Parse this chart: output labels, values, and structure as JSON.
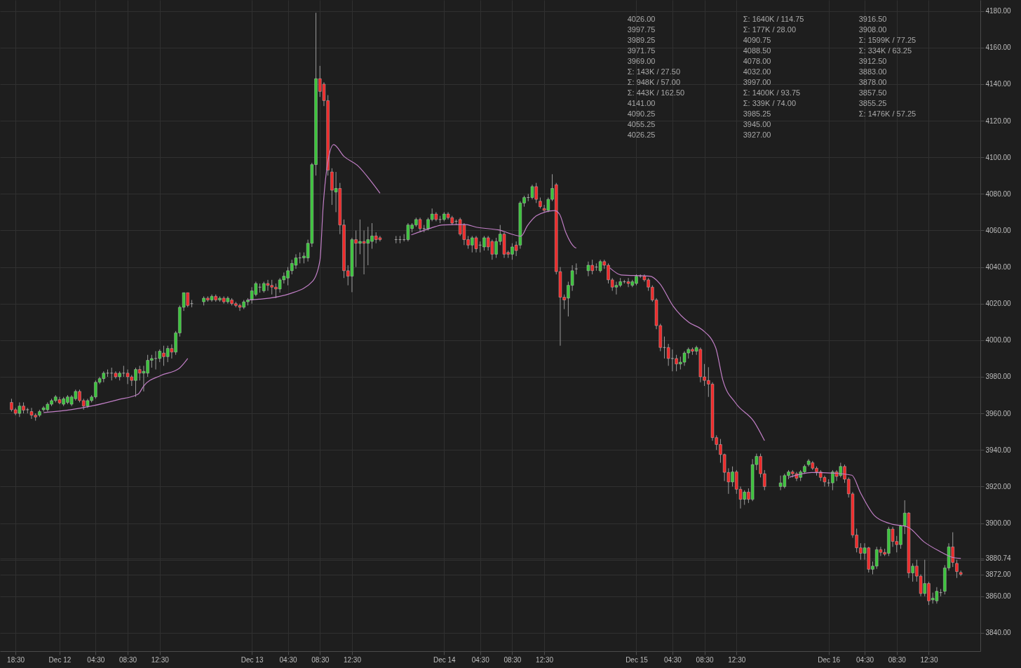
{
  "chart_data": {
    "type": "candlestick",
    "x": [
      "--12-11T18:00",
      "--12-11T18:30",
      "--12-11T19:00",
      "--12-11T19:30",
      "--12-11T20:00",
      "--12-11T20:30",
      "--12-11T21:00",
      "--12-11T21:30",
      "--12-11T22:00",
      "--12-11T22:30",
      "--12-11T23:00",
      "--12-11T23:30",
      "--12-12T00:00",
      "--12-12T00:30",
      "--12-12T01:00",
      "--12-12T01:30",
      "--12-12T02:00",
      "--12-12T02:30",
      "--12-12T03:00",
      "--12-12T03:30",
      "--12-12T04:00",
      "--12-12T04:30",
      "--12-12T05:00",
      "--12-12T05:30",
      "--12-12T06:00",
      "--12-12T06:30",
      "--12-12T07:00",
      "--12-12T07:30",
      "--12-12T08:00",
      "--12-12T08:30",
      "--12-12T09:00",
      "--12-12T09:30",
      "--12-12T10:00",
      "--12-12T10:30",
      "--12-12T11:00",
      "--12-12T11:30",
      "--12-12T12:00",
      "--12-12T12:30",
      "--12-12T13:00",
      "--12-12T13:30",
      "--12-12T14:00",
      "--12-12T14:30",
      "--12-12T15:00",
      "--12-12T15:30",
      "--12-12T16:00",
      "--12-12T16:30",
      "--12-12T18:00",
      "--12-12T18:30",
      "--12-12T19:00",
      "--12-12T19:30",
      "--12-12T20:00",
      "--12-12T20:30",
      "--12-12T21:00",
      "--12-12T21:30",
      "--12-12T22:00",
      "--12-12T22:30",
      "--12-12T23:00",
      "--12-12T23:30",
      "--12-13T00:00",
      "--12-13T00:30",
      "--12-13T01:00",
      "--12-13T01:30",
      "--12-13T02:00",
      "--12-13T02:30",
      "--12-13T03:00",
      "--12-13T03:30",
      "--12-13T04:00",
      "--12-13T04:30",
      "--12-13T05:00",
      "--12-13T05:30",
      "--12-13T06:00",
      "--12-13T06:30",
      "--12-13T07:00",
      "--12-13T07:30",
      "--12-13T08:00",
      "--12-13T08:30",
      "--12-13T09:00",
      "--12-13T09:30",
      "--12-13T10:00",
      "--12-13T10:30",
      "--12-13T11:00",
      "--12-13T11:30",
      "--12-13T12:00",
      "--12-13T12:30",
      "--12-13T13:00",
      "--12-13T13:30",
      "--12-13T14:00",
      "--12-13T14:30",
      "--12-13T15:00",
      "--12-13T15:30",
      "--12-13T16:00",
      "--12-13T18:00",
      "--12-13T18:30",
      "--12-13T19:00",
      "--12-13T19:30",
      "--12-13T20:00",
      "--12-13T20:30",
      "--12-13T21:00",
      "--12-13T21:30",
      "--12-13T22:00",
      "--12-13T22:30",
      "--12-13T23:00",
      "--12-13T23:30",
      "--12-14T00:00",
      "--12-14T00:30",
      "--12-14T01:00",
      "--12-14T01:30",
      "--12-14T02:00",
      "--12-14T02:30",
      "--12-14T03:00",
      "--12-14T03:30",
      "--12-14T04:00",
      "--12-14T04:30",
      "--12-14T05:00",
      "--12-14T05:30",
      "--12-14T06:00",
      "--12-14T06:30",
      "--12-14T07:00",
      "--12-14T07:30",
      "--12-14T08:00",
      "--12-14T08:30",
      "--12-14T09:00",
      "--12-14T09:30",
      "--12-14T10:00",
      "--12-14T10:30",
      "--12-14T11:00",
      "--12-14T11:30",
      "--12-14T12:00",
      "--12-14T12:30",
      "--12-14T13:00",
      "--12-14T13:30",
      "--12-14T14:00",
      "--12-14T14:30",
      "--12-14T15:00",
      "--12-14T15:30",
      "--12-14T16:00",
      "--12-14T16:30",
      "--12-14T18:00",
      "--12-14T18:30",
      "--12-14T19:00",
      "--12-14T19:30",
      "--12-14T20:00",
      "--12-14T20:30",
      "--12-14T21:00",
      "--12-14T21:30",
      "--12-14T22:00",
      "--12-14T22:30",
      "--12-14T23:00",
      "--12-14T23:30",
      "--12-15T00:00",
      "--12-15T00:30",
      "--12-15T01:00",
      "--12-15T01:30",
      "--12-15T02:00",
      "--12-15T02:30",
      "--12-15T03:00",
      "--12-15T03:30",
      "--12-15T04:00",
      "--12-15T04:30",
      "--12-15T05:00",
      "--12-15T05:30",
      "--12-15T06:00",
      "--12-15T06:30",
      "--12-15T07:00",
      "--12-15T07:30",
      "--12-15T08:00",
      "--12-15T08:30",
      "--12-15T09:00",
      "--12-15T09:30",
      "--12-15T10:00",
      "--12-15T10:30",
      "--12-15T11:00",
      "--12-15T11:30",
      "--12-15T12:00",
      "--12-15T12:30",
      "--12-15T13:00",
      "--12-15T13:30",
      "--12-15T14:00",
      "--12-15T14:30",
      "--12-15T15:00",
      "--12-15T15:30",
      "--12-15T16:00",
      "--12-15T18:00",
      "--12-15T18:30",
      "--12-15T19:00",
      "--12-15T19:30",
      "--12-15T20:00",
      "--12-15T20:30",
      "--12-15T21:00",
      "--12-15T21:30",
      "--12-15T22:00",
      "--12-15T22:30",
      "--12-15T23:00",
      "--12-15T23:30",
      "--12-16T00:00",
      "--12-16T00:30",
      "--12-16T01:00",
      "--12-16T01:30",
      "--12-16T02:00",
      "--12-16T02:30",
      "--12-16T03:00",
      "--12-16T03:30",
      "--12-16T04:00",
      "--12-16T04:30",
      "--12-16T05:00",
      "--12-16T05:30",
      "--12-16T06:00",
      "--12-16T06:30",
      "--12-16T07:00",
      "--12-16T07:30",
      "--12-16T08:00",
      "--12-16T08:30",
      "--12-16T09:00",
      "--12-16T09:30",
      "--12-16T10:00",
      "--12-16T10:30",
      "--12-16T11:00",
      "--12-16T11:30",
      "--12-16T12:00",
      "--12-16T12:30",
      "--12-16T13:00",
      "--12-16T13:30",
      "--12-16T14:00",
      "--12-16T14:30",
      "--12-16T15:00",
      "--12-16T15:30",
      "--12-16T16:00",
      "--12-16T16:30"
    ],
    "ohlc": [
      [
        3966,
        3968,
        3961,
        3962
      ],
      [
        3962,
        3963,
        3959,
        3960
      ],
      [
        3960,
        3966,
        3958,
        3964
      ],
      [
        3964,
        3966,
        3960,
        3961.75
      ],
      [
        3962,
        3963,
        3960,
        3962
      ],
      [
        3961,
        3963,
        3957,
        3959
      ],
      [
        3959,
        3960,
        3956,
        3958
      ],
      [
        3959,
        3962,
        3958,
        3961
      ],
      [
        3962,
        3964,
        3961,
        3963
      ],
      [
        3962,
        3966,
        3961,
        3965
      ],
      [
        3965,
        3968,
        3964,
        3967
      ],
      [
        3967,
        3970,
        3966,
        3969
      ],
      [
        3967.5,
        3969,
        3965,
        3965.75
      ],
      [
        3965,
        3969,
        3964,
        3968
      ],
      [
        3966,
        3970,
        3965,
        3969
      ],
      [
        3965,
        3970,
        3964,
        3969
      ],
      [
        3968,
        3973,
        3967,
        3972
      ],
      [
        3972,
        3973,
        3966,
        3967
      ],
      [
        3967,
        3968,
        3962,
        3964
      ],
      [
        3964,
        3968,
        3963,
        3967
      ],
      [
        3967,
        3970,
        3966,
        3969
      ],
      [
        3969,
        3978,
        3968,
        3977
      ],
      [
        3977,
        3980,
        3976,
        3979
      ],
      [
        3979,
        3983,
        3977,
        3982
      ],
      [
        3982,
        3984,
        3980,
        3982
      ],
      [
        3982,
        3985,
        3978,
        3982
      ],
      [
        3982,
        3983,
        3979,
        3980
      ],
      [
        3980,
        3983,
        3978,
        3982
      ],
      [
        3982,
        3986,
        3980,
        3982
      ],
      [
        3982,
        3984,
        3976,
        3980
      ],
      [
        3980,
        3981,
        3975,
        3978
      ],
      [
        3978,
        3985,
        3969,
        3984
      ],
      [
        3984,
        3986,
        3978,
        3982
      ],
      [
        3982,
        3986,
        3972,
        3983
      ],
      [
        3982,
        3992,
        3980,
        3989
      ],
      [
        3989,
        3992,
        3985,
        3990
      ],
      [
        3990,
        3994,
        3984,
        3990
      ],
      [
        3990,
        3995,
        3988,
        3994
      ],
      [
        3993,
        3997,
        3986,
        3991
      ],
      [
        3991,
        3997,
        3988,
        3995.5
      ],
      [
        3995.5,
        3997.75,
        3990,
        3993.5
      ],
      [
        3993.5,
        4005,
        3992,
        4004
      ],
      [
        4004,
        4019,
        4002,
        4018
      ],
      [
        4018,
        4026,
        4016,
        4026
      ],
      [
        4026,
        4026,
        4018,
        4019
      ],
      [
        4020,
        4022,
        4018,
        4020
      ],
      [
        4021,
        4024,
        4019,
        4023
      ],
      [
        4023,
        4024,
        4021,
        4022
      ],
      [
        4022,
        4025,
        4021,
        4024
      ],
      [
        4024,
        4025,
        4021,
        4022
      ],
      [
        4022,
        4024,
        4021,
        4023
      ],
      [
        4023,
        4024,
        4020,
        4021
      ],
      [
        4021,
        4024,
        4020,
        4023
      ],
      [
        4022,
        4023,
        4019,
        4020
      ],
      [
        4020,
        4021,
        4018,
        4019
      ],
      [
        4019,
        4020,
        4016,
        4018
      ],
      [
        4018,
        4022,
        4017,
        4021
      ],
      [
        4021,
        4023,
        4019,
        4022
      ],
      [
        4022,
        4029,
        4020,
        4027
      ],
      [
        4025,
        4032,
        4024,
        4031
      ],
      [
        4029,
        4031,
        4026,
        4029
      ],
      [
        4027,
        4032,
        4026,
        4031
      ],
      [
        4031,
        4033,
        4027,
        4030
      ],
      [
        4030,
        4033,
        4025,
        4029
      ],
      [
        4029,
        4031,
        4023,
        4028
      ],
      [
        4028,
        4034,
        4026,
        4033
      ],
      [
        4033,
        4037,
        4031,
        4035
      ],
      [
        4034,
        4040,
        4030,
        4038
      ],
      [
        4038,
        4044,
        4036,
        4042
      ],
      [
        4041,
        4047,
        4039,
        4045
      ],
      [
        4045,
        4048,
        4042,
        4045
      ],
      [
        4045,
        4048,
        4042,
        4046
      ],
      [
        4045,
        4055,
        4043,
        4053
      ],
      [
        4053,
        4097,
        4051,
        4096
      ],
      [
        4096,
        4179,
        4090,
        4143
      ],
      [
        4143,
        4150,
        4133,
        4136
      ],
      [
        4140,
        4141,
        4128,
        4131
      ],
      [
        4131,
        4134,
        4090,
        4093
      ],
      [
        4092,
        4094,
        4074,
        4082
      ],
      [
        4081,
        4092,
        4070,
        4083
      ],
      [
        4083,
        4086,
        4058,
        4063
      ],
      [
        4063,
        4066,
        4034,
        4038
      ],
      [
        4038,
        4041,
        4030,
        4035
      ],
      [
        4035,
        4056,
        4026.25,
        4055
      ],
      [
        4055,
        4060,
        4040,
        4053
      ],
      [
        4053,
        4066,
        4047,
        4054
      ],
      [
        4054,
        4060,
        4036,
        4053
      ],
      [
        4053,
        4062,
        4041,
        4055
      ],
      [
        4054,
        4064,
        4050,
        4057
      ],
      [
        4057,
        4059,
        4053,
        4055
      ],
      [
        4056,
        4057,
        4054,
        4055
      ],
      [
        4055,
        4057,
        4053,
        4055
      ],
      [
        4055,
        4057,
        4053,
        4055
      ],
      [
        4055,
        4058,
        4054,
        4055
      ],
      [
        4055,
        4064,
        4054,
        4063
      ],
      [
        4061,
        4064,
        4059,
        4063
      ],
      [
        4063,
        4067,
        4062,
        4066
      ],
      [
        4066,
        4067,
        4059,
        4061
      ],
      [
        4061,
        4063,
        4059,
        4061
      ],
      [
        4061,
        4067,
        4060,
        4066
      ],
      [
        4066,
        4072,
        4065,
        4069
      ],
      [
        4069,
        4070,
        4065,
        4066
      ],
      [
        4066,
        4068,
        4064,
        4066
      ],
      [
        4066,
        4070,
        4065,
        4069
      ],
      [
        4069,
        4070,
        4066,
        4067
      ],
      [
        4067,
        4068,
        4063,
        4064
      ],
      [
        4065,
        4066,
        4063,
        4065
      ],
      [
        4066,
        4067,
        4057,
        4058
      ],
      [
        4063,
        4064,
        4052,
        4055
      ],
      [
        4055,
        4057,
        4050,
        4052
      ],
      [
        4052,
        4057,
        4048,
        4056
      ],
      [
        4056,
        4057,
        4048,
        4050
      ],
      [
        4052,
        4054,
        4048,
        4052
      ],
      [
        4051,
        4057,
        4049,
        4056
      ],
      [
        4056,
        4057,
        4049,
        4051
      ],
      [
        4054,
        4055,
        4044,
        4047
      ],
      [
        4047,
        4056,
        4045,
        4054
      ],
      [
        4054,
        4063,
        4052,
        4058
      ],
      [
        4058,
        4059,
        4045,
        4047
      ],
      [
        4048,
        4049,
        4045,
        4047
      ],
      [
        4047,
        4053,
        4044,
        4051
      ],
      [
        4052,
        4054,
        4046,
        4049
      ],
      [
        4052,
        4076,
        4050,
        4075
      ],
      [
        4075,
        4079,
        4073,
        4078
      ],
      [
        4078,
        4080,
        4076,
        4078
      ],
      [
        4078,
        4085,
        4077,
        4084
      ],
      [
        4084,
        4086,
        4075,
        4077
      ],
      [
        4076,
        4078,
        4072,
        4073
      ],
      [
        4072,
        4074,
        4070,
        4071
      ],
      [
        4071,
        4078,
        4070,
        4077
      ],
      [
        4077,
        4090.75,
        4076,
        4083
      ],
      [
        4085,
        4086,
        4036,
        4037.5
      ],
      [
        4037.5,
        4040,
        3997,
        4023.5
      ],
      [
        4023.5,
        4025,
        4017,
        4022
      ],
      [
        4023,
        4032,
        4013,
        4030
      ],
      [
        4030,
        4041,
        4027,
        4038
      ],
      [
        4039,
        4042,
        4036,
        4039
      ],
      [
        4038,
        4043,
        4035,
        4041
      ],
      [
        4041,
        4044,
        4036,
        4038
      ],
      [
        4040,
        4042,
        4038,
        4040
      ],
      [
        4038,
        4044,
        4037,
        4043
      ],
      [
        4043,
        4044,
        4039,
        4041
      ],
      [
        4041,
        4042,
        4031,
        4033
      ],
      [
        4033,
        4034,
        4027,
        4029
      ],
      [
        4029,
        4032,
        4025,
        4030
      ],
      [
        4030,
        4034,
        4029,
        4032
      ],
      [
        4032,
        4033,
        4031,
        4032
      ],
      [
        4032,
        4034,
        4029,
        4031
      ],
      [
        4030,
        4033,
        4029,
        4032
      ],
      [
        4031,
        4036,
        4030,
        4035
      ],
      [
        4035,
        4036,
        4034,
        4035
      ],
      [
        4035,
        4036,
        4032,
        4033
      ],
      [
        4033,
        4034,
        4027,
        4029
      ],
      [
        4029,
        4030,
        4021,
        4022
      ],
      [
        4022,
        4023,
        4006,
        4008
      ],
      [
        4008,
        4009,
        3994,
        3996
      ],
      [
        3996,
        4002,
        3990,
        3996
      ],
      [
        3996,
        3998,
        3986,
        3990
      ],
      [
        3990,
        3995,
        3983,
        3990
      ],
      [
        3990,
        3992,
        3983,
        3987
      ],
      [
        3987,
        3991,
        3984,
        3988
      ],
      [
        3988,
        3994,
        3986,
        3993
      ],
      [
        3993,
        3996,
        3990,
        3995
      ],
      [
        3995,
        3996,
        3992,
        3994
      ],
      [
        3994,
        3997,
        3992,
        3996
      ],
      [
        3995,
        3996,
        3977,
        3980
      ],
      [
        3980,
        3987,
        3975,
        3978
      ],
      [
        3978,
        3985.25,
        3969,
        3976
      ],
      [
        3976,
        3977,
        3945,
        3946.75
      ],
      [
        3946.75,
        3948,
        3940,
        3943
      ],
      [
        3943,
        3946,
        3933,
        3937.5
      ],
      [
        3937.5,
        3938,
        3923,
        3927.75
      ],
      [
        3927.75,
        3930,
        3916,
        3922.5
      ],
      [
        3922.5,
        3931,
        3920,
        3928
      ],
      [
        3928,
        3929,
        3916,
        3918.5
      ],
      [
        3918.5,
        3920,
        3908,
        3913
      ],
      [
        3913,
        3918,
        3910,
        3917
      ],
      [
        3917,
        3919,
        3911,
        3913
      ],
      [
        3913,
        3935,
        3912,
        3932
      ],
      [
        3932,
        3938,
        3929,
        3936.5
      ],
      [
        3936.5,
        3938,
        3925,
        3927
      ],
      [
        3927,
        3929,
        3918,
        3920
      ],
      [
        3920,
        3926,
        3918,
        3922
      ],
      [
        3920,
        3927,
        3919,
        3926
      ],
      [
        3926,
        3929,
        3924,
        3928
      ],
      [
        3928,
        3929,
        3925,
        3927
      ],
      [
        3927,
        3928,
        3923,
        3924.5
      ],
      [
        3925,
        3929,
        3923,
        3928
      ],
      [
        3928,
        3932,
        3927,
        3931
      ],
      [
        3932,
        3935,
        3931,
        3934
      ],
      [
        3933,
        3934,
        3929,
        3930
      ],
      [
        3930,
        3931,
        3926,
        3928
      ],
      [
        3928,
        3929,
        3923,
        3925
      ],
      [
        3925,
        3926,
        3920,
        3922.5
      ],
      [
        3922,
        3924,
        3920,
        3922
      ],
      [
        3922,
        3929,
        3918,
        3928
      ],
      [
        3928,
        3929,
        3923,
        3925.5
      ],
      [
        3926,
        3933,
        3925,
        3931
      ],
      [
        3931,
        3932,
        3922,
        3924
      ],
      [
        3924,
        3925,
        3914,
        3916
      ],
      [
        3916,
        3917,
        3892,
        3893.5
      ],
      [
        3893.5,
        3897,
        3884,
        3886.5
      ],
      [
        3886.5,
        3889,
        3880,
        3883.5
      ],
      [
        3883.5,
        3889,
        3880,
        3886.5
      ],
      [
        3886.5,
        3887,
        3873,
        3874.75
      ],
      [
        3874.75,
        3879,
        3872,
        3876.5
      ],
      [
        3876.5,
        3887,
        3875,
        3885.5
      ],
      [
        3885.5,
        3887,
        3882,
        3884
      ],
      [
        3884,
        3886,
        3882,
        3883
      ],
      [
        3883.5,
        3898,
        3882,
        3896.75
      ],
      [
        3896.75,
        3898,
        3887,
        3890
      ],
      [
        3890,
        3893,
        3884,
        3888.25
      ],
      [
        3888.25,
        3899,
        3886,
        3898.5
      ],
      [
        3898.5,
        3912.5,
        3894,
        3905.5
      ],
      [
        3905.5,
        3906,
        3870,
        3872.75
      ],
      [
        3872.75,
        3878,
        3868,
        3876.5
      ],
      [
        3876.5,
        3880,
        3868,
        3871
      ],
      [
        3871,
        3872,
        3860,
        3861.5
      ],
      [
        3861.5,
        3880,
        3860,
        3867
      ],
      [
        3867,
        3868,
        3855.25,
        3857.5
      ],
      [
        3858,
        3862,
        3856,
        3859
      ],
      [
        3857.5,
        3865,
        3856,
        3862.75
      ],
      [
        3862,
        3864,
        3860,
        3862
      ],
      [
        3862.75,
        3877,
        3861,
        3875.5
      ],
      [
        3875.5,
        3889,
        3874,
        3887
      ],
      [
        3887,
        3895,
        3876,
        3878.5
      ],
      [
        3878,
        3880,
        3870,
        3873.5
      ],
      [
        3873,
        3874,
        3871,
        3872
      ]
    ],
    "series": [
      {
        "type": "line",
        "color": "#c17fc6",
        "x": [
          "--12-11T22:00",
          "--12-12T01:24",
          "--12-12T04:12",
          "--12-12T07:18",
          "--12-12T09:48",
          "--12-12T10:30",
          "--12-12T12:36",
          "--12-12T14:54",
          "--12-12T16:00"
        ],
        "values": [
          3960.5,
          3962,
          3964.2,
          3967.5,
          3970.5,
          3975,
          3980.7,
          3984.5,
          3990
        ]
      },
      {
        "type": "line",
        "color": "#c17fc6",
        "x": [
          "--12-12T23:30",
          "--12-13T00:54",
          "--12-13T04:48",
          "--12-13T07:36",
          "--12-13T08:30",
          "--12-13T08:54",
          "--12-13T09:18",
          "--12-13T10:12",
          "--12-13T11:30",
          "--12-13T13:12",
          "--12-13T14:54",
          "--12-13T16:00"
        ],
        "values": [
          4022,
          4022.4,
          4025.5,
          4032.3,
          4043.6,
          4073,
          4091.7,
          4106.9,
          4100.5,
          4095.5,
          4086.8,
          4080.4
        ]
      },
      {
        "type": "line",
        "color": "#c17fc6",
        "x": [
          "--12-13T19:54",
          "--12-13T22:24",
          "--12-13T23:48",
          "--12-14T02:36",
          "--12-14T04:00",
          "--12-14T06:48",
          "--12-14T09:36",
          "--12-14T10:24",
          "--12-14T11:36",
          "--12-14T13:48",
          "--12-14T14:24",
          "--12-14T15:12",
          "--12-14T16:18",
          "--12-14T16:30"
        ],
        "values": [
          4057.6,
          4061.4,
          4063,
          4063.3,
          4061.8,
          4060.3,
          4056.9,
          4062.6,
          4068.2,
          4070.9,
          4069,
          4058.8,
          4050.8,
          4050.4
        ]
      },
      {
        "type": "line",
        "color": "#c17fc6",
        "x": [
          "--12-14T20:42",
          "--12-14T22:06",
          "--12-15T01:42",
          "--12-15T02:54",
          "--12-15T04:36",
          "--12-15T06:36",
          "--12-15T08:12",
          "--12-15T09:54",
          "--12-15T10:48",
          "--12-15T12:24",
          "--12-15T14:42",
          "--12-15T16:00"
        ],
        "values": [
          4039.5,
          4035.7,
          4035,
          4031.1,
          4018.6,
          4009.6,
          4005.8,
          3995.9,
          3978.1,
          3965.6,
          3955.4,
          3945.1
        ]
      },
      {
        "type": "line",
        "color": "#c17fc6",
        "x": [
          "--12-15T19:06",
          "--12-15T21:54",
          "--12-16T00:42",
          "--12-16T02:54",
          "--12-16T04:00",
          "--12-16T05:42",
          "--12-16T07:42",
          "--12-16T09:54",
          "--12-16T11:54",
          "--12-16T13:54",
          "--12-16T15:18",
          "--12-16T16:30"
        ],
        "values": [
          3925.1,
          3927.7,
          3927.3,
          3926.2,
          3916.4,
          3904.2,
          3899.7,
          3897.8,
          3889.8,
          3884.5,
          3881.5,
          3880.7
        ]
      }
    ],
    "xlim": [
      "--12-11T17:00",
      "--12-16T18:30"
    ],
    "xticks": [
      {
        "value": "--12-11T18:30",
        "label": "18:30"
      },
      {
        "value": "--12-12T00:00",
        "label": "Dec 12"
      },
      {
        "value": "--12-12T04:30",
        "label": "04:30"
      },
      {
        "value": "--12-12T08:30",
        "label": "08:30"
      },
      {
        "value": "--12-12T12:30",
        "label": "12:30"
      },
      {
        "value": "--12-13T00:00",
        "label": "Dec 13"
      },
      {
        "value": "--12-13T04:30",
        "label": "04:30"
      },
      {
        "value": "--12-13T08:30",
        "label": "08:30"
      },
      {
        "value": "--12-13T12:30",
        "label": "12:30"
      },
      {
        "value": "--12-14T00:00",
        "label": "Dec 14"
      },
      {
        "value": "--12-14T04:30",
        "label": "04:30"
      },
      {
        "value": "--12-14T08:30",
        "label": "08:30"
      },
      {
        "value": "--12-14T12:30",
        "label": "12:30"
      },
      {
        "value": "--12-15T00:00",
        "label": "Dec 15"
      },
      {
        "value": "--12-15T04:30",
        "label": "04:30"
      },
      {
        "value": "--12-15T08:30",
        "label": "08:30"
      },
      {
        "value": "--12-15T12:30",
        "label": "12:30"
      },
      {
        "value": "--12-16T00:00",
        "label": "Dec 16"
      },
      {
        "value": "--12-16T04:30",
        "label": "04:30"
      },
      {
        "value": "--12-16T08:30",
        "label": "08:30"
      },
      {
        "value": "--12-16T12:30",
        "label": "12:30"
      }
    ],
    "ylim": [
      3830,
      4186
    ],
    "yticks": [
      {
        "value": 3840,
        "label": "3840.00"
      },
      {
        "value": 3860,
        "label": "3860.00"
      },
      {
        "value": 3872,
        "label": "3872.00"
      },
      {
        "value": 3880,
        "label": null
      },
      {
        "value": 3880.74,
        "label": "3880.74"
      },
      {
        "value": 3900,
        "label": "3900.00"
      },
      {
        "value": 3920,
        "label": "3920.00"
      },
      {
        "value": 3940,
        "label": "3940.00"
      },
      {
        "value": 3960,
        "label": "3960.00"
      },
      {
        "value": 3980,
        "label": "3980.00"
      },
      {
        "value": 4000,
        "label": "4000.00"
      },
      {
        "value": 4020,
        "label": "4020.00"
      },
      {
        "value": 4040,
        "label": "4040.00"
      },
      {
        "value": 4060,
        "label": "4060.00"
      },
      {
        "value": 4080,
        "label": "4080.00"
      },
      {
        "value": 4100,
        "label": "4100.00"
      },
      {
        "value": 4120,
        "label": "4120.00"
      },
      {
        "value": 4140,
        "label": "4140.00"
      },
      {
        "value": 4160,
        "label": "4160.00"
      },
      {
        "value": 4180,
        "label": "4180.00"
      }
    ],
    "grid": true,
    "annotations": [
      "4026.00",
      "3997.75",
      "3989.25",
      "3971.75",
      "3969.00",
      "Σ: 143K / 27.50",
      "Σ: 948K / 57.00",
      "Σ: 443K / 162.50",
      "4141.00",
      "4090.25",
      "4055.25",
      "4026.25",
      "Σ: 1640K / 114.75",
      "Σ: 177K / 28.00",
      "4090.75",
      "4088.50",
      "4078.00",
      "4032.00",
      "3997.00",
      "Σ: 1400K / 93.75",
      "Σ: 339K / 74.00",
      "3985.25",
      "3945.00",
      "3927.00",
      "3916.50",
      "3908.00",
      "Σ: 1599K / 77.25",
      "Σ: 334K / 63.25",
      "3912.50",
      "3883.00",
      "3878.00",
      "3857.50",
      "3855.25",
      "Σ: 1476K / 57.25"
    ]
  }
}
